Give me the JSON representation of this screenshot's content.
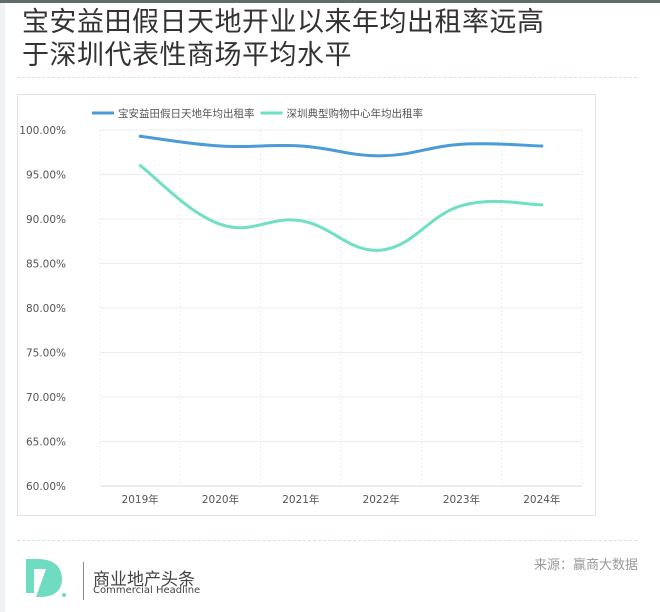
{
  "title": {
    "line1": "宝安益田假日天地开业以来年均出租率远高",
    "line2": "于深圳代表性商场平均水平"
  },
  "legend": [
    {
      "label": "宝安益田假日天地年均出租率",
      "color": "#4a9bd6"
    },
    {
      "label": "深圳典型购物中心年均出租率",
      "color": "#6fe0c4"
    }
  ],
  "footer": {
    "logo_letter": "D",
    "brand_cn": "商业地产头条",
    "brand_en": "Commercial Headline",
    "source": "来源：赢商大数据",
    "logo_color": "#6fdcc2"
  },
  "chart_data": {
    "type": "line",
    "title": "宝安益田假日天地开业以来年均出租率远高于深圳代表性商场平均水平",
    "xlabel": "",
    "ylabel": "",
    "categories": [
      "2019年",
      "2020年",
      "2021年",
      "2022年",
      "2023年",
      "2024年"
    ],
    "series": [
      {
        "name": "宝安益田假日天地年均出租率",
        "color": "#4a9bd6",
        "values": [
          99.3,
          98.2,
          98.2,
          97.1,
          98.4,
          98.2
        ]
      },
      {
        "name": "深圳典型购物中心年均出租率",
        "color": "#6fe0c4",
        "values": [
          96.0,
          89.4,
          89.8,
          86.5,
          91.5,
          91.6
        ]
      }
    ],
    "yticks": [
      "60.00%",
      "65.00%",
      "70.00%",
      "75.00%",
      "80.00%",
      "85.00%",
      "90.00%",
      "95.00%",
      "100.00%"
    ],
    "ylim": [
      60,
      100
    ],
    "grid": true,
    "smooth": true,
    "legend_position": "top"
  }
}
